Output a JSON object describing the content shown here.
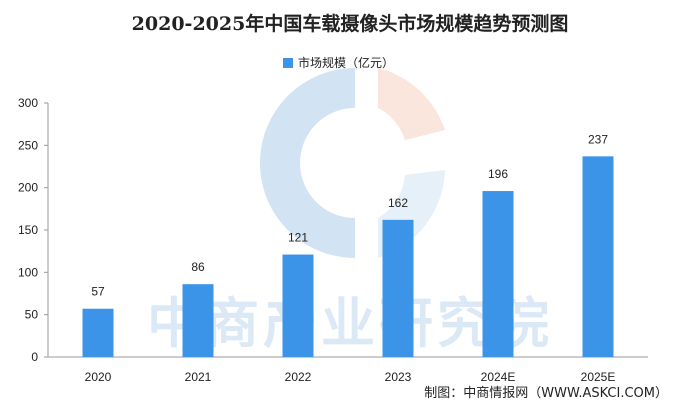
{
  "chart_data": {
    "type": "bar",
    "title": "2020-2025年中国车载摄像头市场规模趋势预测图",
    "categories": [
      "2020",
      "2021",
      "2022",
      "2023",
      "2024E",
      "2025E"
    ],
    "series": [
      {
        "name": "市场规模（亿元）",
        "values": [
          57,
          86,
          121,
          162,
          196,
          237
        ]
      }
    ],
    "data_labels": [
      "57",
      "86",
      "121",
      "162",
      "196",
      "237"
    ],
    "ylim": [
      0,
      300
    ],
    "yticks": [
      0,
      50,
      100,
      150,
      200,
      250,
      300
    ],
    "ytick_labels": [
      "0",
      "50",
      "100",
      "150",
      "200",
      "250",
      "300"
    ],
    "grid": false,
    "legend_position": "top-center",
    "colors": {
      "bar": "#3b94e8",
      "axis": "#9a9a9a"
    }
  },
  "source_note": "制图：中商情报网（WWW.ASKCI.COM）",
  "watermark": "中商产业研究院"
}
